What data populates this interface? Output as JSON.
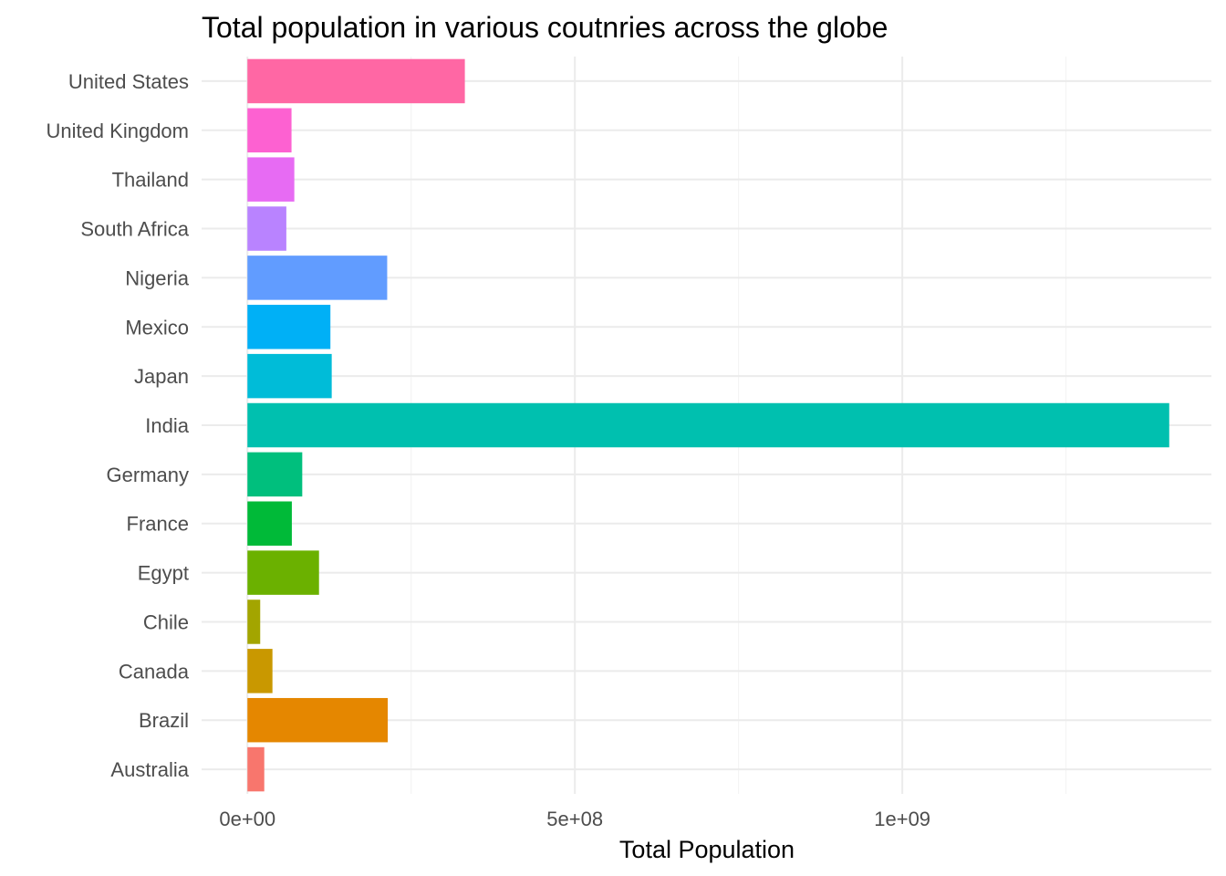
{
  "chart_data": {
    "type": "bar",
    "orientation": "horizontal",
    "title": "Total population in various coutnries across the globe",
    "xlabel": "Total Population",
    "ylabel": "",
    "categories": [
      "Australia",
      "Brazil",
      "Canada",
      "Chile",
      "Egypt",
      "France",
      "Germany",
      "India",
      "Japan",
      "Mexico",
      "Nigeria",
      "South Africa",
      "Thailand",
      "United Kingdom",
      "United States"
    ],
    "values": [
      25700000,
      214300000,
      38200000,
      19500000,
      109300000,
      67800000,
      83700000,
      1407600000,
      128700000,
      126700000,
      213400000,
      59400000,
      71600000,
      67300000,
      332000000
    ],
    "colors": [
      "#F8766D",
      "#E58700",
      "#C99800",
      "#A3A500",
      "#6BB100",
      "#00BA38",
      "#00BF7D",
      "#00C0AF",
      "#00BCD8",
      "#00B0F6",
      "#619CFF",
      "#B983FF",
      "#E76BF3",
      "#FD61D1",
      "#FF67A4"
    ],
    "xlim": [
      -70000000,
      1472000000
    ],
    "xticks": [
      0,
      500000000,
      1000000000
    ],
    "xtick_labels": [
      "0e+00",
      "5e+08",
      "1e+09"
    ],
    "minor_xticks": [
      250000000,
      750000000,
      1250000000
    ],
    "grid": true,
    "legend": "none"
  }
}
